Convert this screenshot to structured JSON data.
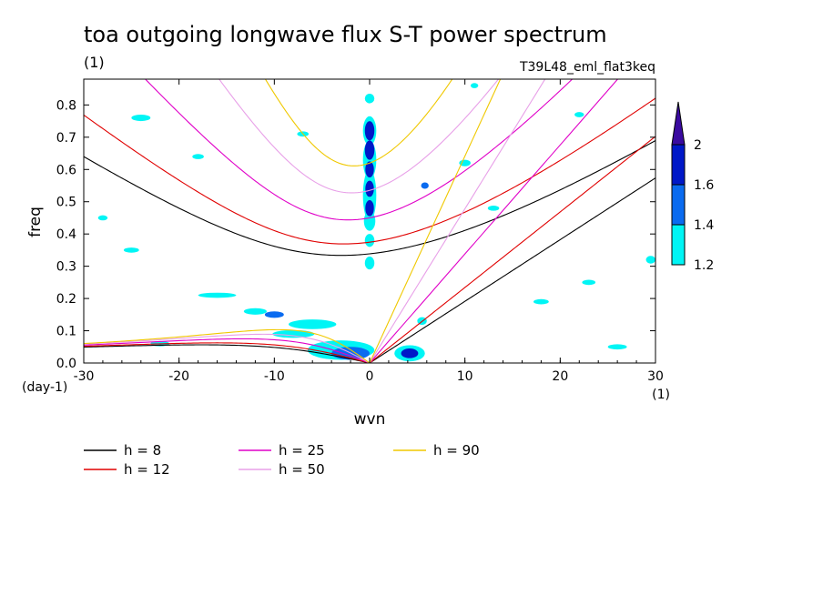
{
  "chart_data": {
    "type": "heatmap",
    "title": "toa outgoing longwave flux S-T power spectrum",
    "subtitle_left": "(1)",
    "subtitle_right": "T39L48_eml_flat3keq",
    "xlabel": "wvn",
    "ylabel": "freq",
    "x_unit_label": "(1)",
    "y_unit_label": "(day-1)",
    "xlim": [
      -30,
      30
    ],
    "ylim": [
      0,
      0.88
    ],
    "x_ticks": [
      "-30",
      "-20",
      "-10",
      "0",
      "10",
      "20",
      "30"
    ],
    "y_ticks": [
      "0.0",
      "0.1",
      "0.2",
      "0.3",
      "0.4",
      "0.5",
      "0.6",
      "0.7",
      "0.8"
    ],
    "colorbar": {
      "levels": [
        "1.2",
        "1.4",
        "1.6",
        "2"
      ],
      "colors": [
        "#00f5f5",
        "#0a6bf0",
        "#0018c8",
        "#3a0aa0"
      ]
    },
    "dispersion_curves": [
      {
        "name": "h =  8",
        "h": 8,
        "color": "#000000"
      },
      {
        "name": "h = 12",
        "h": 12,
        "color": "#e00000"
      },
      {
        "name": "h = 25",
        "h": 25,
        "color": "#e000c8"
      },
      {
        "name": "h = 50",
        "h": 50,
        "color": "#e8a0e8"
      },
      {
        "name": "h = 90",
        "h": 90,
        "color": "#f0c800"
      }
    ],
    "contour_blobs": [
      {
        "x": 0,
        "y": 0.72,
        "rx": 0.5,
        "ry": 0.03,
        "level": 3
      },
      {
        "x": 0,
        "y": 0.66,
        "rx": 0.5,
        "ry": 0.03,
        "level": 3
      },
      {
        "x": 0,
        "y": 0.6,
        "rx": 0.45,
        "ry": 0.025,
        "level": 3
      },
      {
        "x": 0,
        "y": 0.54,
        "rx": 0.45,
        "ry": 0.025,
        "level": 3
      },
      {
        "x": 0,
        "y": 0.48,
        "rx": 0.45,
        "ry": 0.025,
        "level": 3
      },
      {
        "x": 0,
        "y": 0.72,
        "rx": 0.7,
        "ry": 0.045,
        "level": 1
      },
      {
        "x": 0,
        "y": 0.63,
        "rx": 0.7,
        "ry": 0.06,
        "level": 1
      },
      {
        "x": 0,
        "y": 0.52,
        "rx": 0.7,
        "ry": 0.08,
        "level": 1
      },
      {
        "x": 0,
        "y": 0.44,
        "rx": 0.6,
        "ry": 0.03,
        "level": 1
      },
      {
        "x": 0,
        "y": 0.38,
        "rx": 0.5,
        "ry": 0.02,
        "level": 1
      },
      {
        "x": 0,
        "y": 0.31,
        "rx": 0.5,
        "ry": 0.02,
        "level": 1
      },
      {
        "x": 0,
        "y": 0.82,
        "rx": 0.5,
        "ry": 0.015,
        "level": 1
      },
      {
        "x": -3,
        "y": 0.04,
        "rx": 3.5,
        "ry": 0.03,
        "level": 1
      },
      {
        "x": -2,
        "y": 0.03,
        "rx": 2.0,
        "ry": 0.02,
        "level": 2
      },
      {
        "x": 4.2,
        "y": 0.03,
        "rx": 1.6,
        "ry": 0.025,
        "level": 1
      },
      {
        "x": 4.2,
        "y": 0.03,
        "rx": 0.9,
        "ry": 0.015,
        "level": 3
      },
      {
        "x": -6,
        "y": 0.12,
        "rx": 2.5,
        "ry": 0.015,
        "level": 1
      },
      {
        "x": -8,
        "y": 0.09,
        "rx": 2.2,
        "ry": 0.012,
        "level": 1
      },
      {
        "x": -12,
        "y": 0.16,
        "rx": 1.2,
        "ry": 0.01,
        "level": 1
      },
      {
        "x": -10,
        "y": 0.15,
        "rx": 1.0,
        "ry": 0.01,
        "level": 2
      },
      {
        "x": -16,
        "y": 0.21,
        "rx": 2.0,
        "ry": 0.008,
        "level": 1
      },
      {
        "x": -24,
        "y": 0.76,
        "rx": 1.0,
        "ry": 0.01,
        "level": 1
      },
      {
        "x": -7,
        "y": 0.71,
        "rx": 0.6,
        "ry": 0.008,
        "level": 1
      },
      {
        "x": 10,
        "y": 0.62,
        "rx": 0.6,
        "ry": 0.01,
        "level": 1
      },
      {
        "x": 5.8,
        "y": 0.55,
        "rx": 0.4,
        "ry": 0.01,
        "level": 2
      },
      {
        "x": 11,
        "y": 0.86,
        "rx": 0.4,
        "ry": 0.008,
        "level": 1
      },
      {
        "x": 29.5,
        "y": 0.32,
        "rx": 0.5,
        "ry": 0.012,
        "level": 1
      },
      {
        "x": -25,
        "y": 0.35,
        "rx": 0.8,
        "ry": 0.008,
        "level": 1
      },
      {
        "x": -22,
        "y": 0.06,
        "rx": 1.0,
        "ry": 0.008,
        "level": 1
      },
      {
        "x": 26,
        "y": 0.05,
        "rx": 1.0,
        "ry": 0.008,
        "level": 1
      },
      {
        "x": 18,
        "y": 0.19,
        "rx": 0.8,
        "ry": 0.008,
        "level": 1
      },
      {
        "x": 23,
        "y": 0.25,
        "rx": 0.7,
        "ry": 0.008,
        "level": 1
      },
      {
        "x": -28,
        "y": 0.45,
        "rx": 0.5,
        "ry": 0.008,
        "level": 1
      },
      {
        "x": 5.5,
        "y": 0.13,
        "rx": 0.5,
        "ry": 0.012,
        "level": 1
      },
      {
        "x": -18,
        "y": 0.64,
        "rx": 0.6,
        "ry": 0.008,
        "level": 1
      },
      {
        "x": 22,
        "y": 0.77,
        "rx": 0.5,
        "ry": 0.008,
        "level": 1
      },
      {
        "x": 13,
        "y": 0.48,
        "rx": 0.6,
        "ry": 0.008,
        "level": 1
      }
    ]
  }
}
